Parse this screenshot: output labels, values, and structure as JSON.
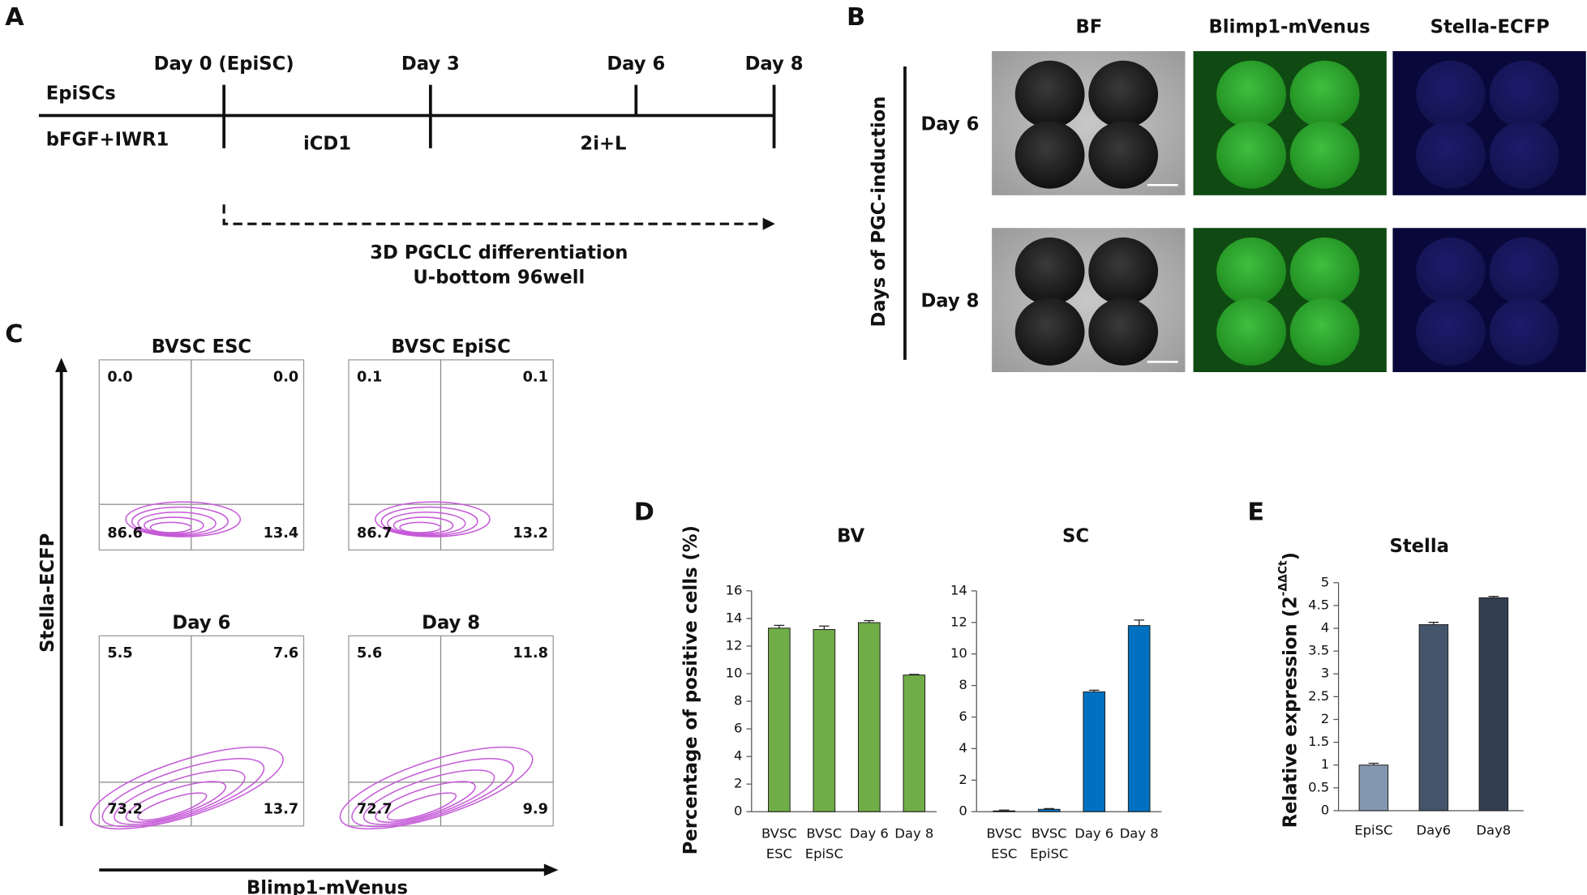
{
  "panel_letters": [
    "A",
    "B",
    "C",
    "D",
    "E"
  ],
  "timeline": {
    "stages": [
      "Day 0 (EpiSC)",
      "Day 3",
      "Day 6",
      "Day 8"
    ],
    "cell_line": "EpiSCs",
    "media": [
      "bFGF+IWR1",
      "iCD1",
      "2i+L"
    ],
    "process": [
      "3D PGCLC differentiation",
      "U-bottom 96well"
    ]
  },
  "imaging": {
    "channels": [
      "BF",
      "Blimp1-mVenus",
      "Stella-ECFP"
    ],
    "axis_label": "Days of PGC-induction",
    "rows": [
      "Day 6",
      "Day 8"
    ]
  },
  "flow": {
    "y_label": "Stella-ECFP",
    "x_label": "Blimp1-mVenus",
    "plots": [
      {
        "title": "BVSC ESC",
        "quadrants": [
          "0.0",
          "0.0",
          "86.6",
          "13.4"
        ]
      },
      {
        "title": "BVSC EpiSC",
        "quadrants": [
          "0.1",
          "0.1",
          "86.7",
          "13.2"
        ]
      },
      {
        "title": "Day 6",
        "quadrants": [
          "5.5",
          "7.6",
          "73.2",
          "13.7"
        ]
      },
      {
        "title": "Day 8",
        "quadrants": [
          "5.6",
          "11.8",
          "72.7",
          "9.9"
        ]
      }
    ]
  },
  "chart_ylabel": "Percentage of positive cells (%)",
  "chart_data": [
    {
      "type": "bar",
      "title": "BV",
      "categories": [
        [
          "BVSC",
          "ESC"
        ],
        [
          "BVSC",
          "EpiSC"
        ],
        [
          "Day 6"
        ],
        [
          "Day 8"
        ]
      ],
      "values": [
        13.3,
        13.2,
        13.7,
        9.9
      ],
      "errors": [
        0.2,
        0.25,
        0.15,
        0.05
      ],
      "color": "#70ad47",
      "ylim": [
        0,
        16
      ],
      "yticks": [
        0,
        2,
        4,
        6,
        8,
        10,
        12,
        14,
        16
      ]
    },
    {
      "type": "bar",
      "title": "SC",
      "categories": [
        [
          "BVSC",
          "ESC"
        ],
        [
          "BVSC",
          "EpiSC"
        ],
        [
          "Day 6"
        ],
        [
          "Day 8"
        ]
      ],
      "values": [
        0.05,
        0.15,
        7.6,
        11.8
      ],
      "errors": [
        0.05,
        0.05,
        0.1,
        0.35
      ],
      "color": "#0070c0",
      "ylim": [
        0,
        14
      ],
      "yticks": [
        0,
        2,
        4,
        6,
        8,
        10,
        12,
        14
      ]
    },
    {
      "type": "bar",
      "title": "Stella",
      "ylabel": [
        "Relative expression (2",
        "-ΔΔCt",
        ")"
      ],
      "categories": [
        "EpiSC",
        "Day6",
        "Day8"
      ],
      "values": [
        1.0,
        4.08,
        4.67
      ],
      "errors": [
        0.04,
        0.05,
        0.03
      ],
      "colors": [
        "#8497b0",
        "#44546a",
        "#333f50"
      ],
      "ylim": [
        0,
        5
      ],
      "yticks": [
        0,
        0.5,
        1,
        1.5,
        2,
        2.5,
        3,
        3.5,
        4,
        4.5,
        5
      ]
    }
  ]
}
